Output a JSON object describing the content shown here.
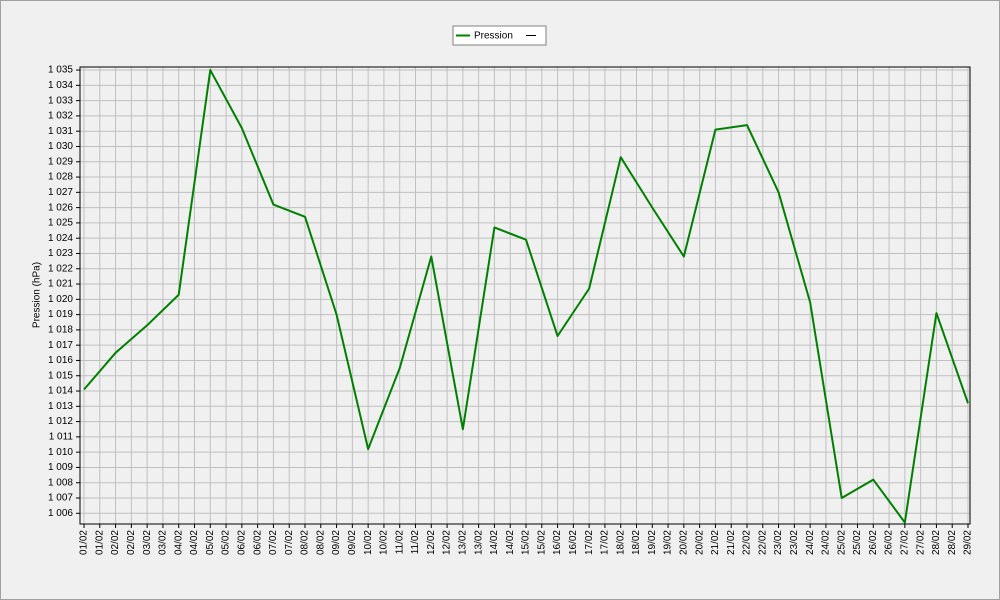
{
  "chart_data": {
    "type": "line",
    "y_label": "Pression (hPa)",
    "x": [
      "01/02",
      "02/02",
      "03/02",
      "04/02",
      "05/02",
      "06/02",
      "07/02",
      "08/02",
      "09/02",
      "10/02",
      "11/02",
      "12/02",
      "13/02",
      "14/02",
      "15/02",
      "16/02",
      "17/02",
      "18/02",
      "19/02",
      "20/02",
      "21/02",
      "22/02",
      "23/02",
      "24/02",
      "25/02",
      "26/02",
      "27/02",
      "28/02",
      "29/02"
    ],
    "xticks": [
      "01/02",
      "01/02",
      "02/02",
      "02/02",
      "03/02",
      "03/02",
      "04/02",
      "04/02",
      "05/02",
      "05/02",
      "06/02",
      "06/02",
      "07/02",
      "07/02",
      "08/02",
      "08/02",
      "09/02",
      "09/02",
      "10/02",
      "10/02",
      "11/02",
      "11/02",
      "12/02",
      "12/02",
      "13/02",
      "13/02",
      "14/02",
      "14/02",
      "15/02",
      "15/02",
      "16/02",
      "16/02",
      "17/02",
      "17/02",
      "18/02",
      "18/02",
      "19/02",
      "19/02",
      "20/02",
      "20/02",
      "21/02",
      "21/02",
      "22/02",
      "22/02",
      "23/02",
      "23/02",
      "24/02",
      "24/02",
      "25/02",
      "25/02",
      "26/02",
      "26/02",
      "27/02",
      "27/02",
      "28/02",
      "28/02",
      "29/02"
    ],
    "series": [
      {
        "name": "Pression",
        "color": "#008000",
        "values": [
          1014.1,
          1016.5,
          1018.3,
          1020.3,
          1035.0,
          1031.2,
          1026.2,
          1025.4,
          1019.0,
          1010.2,
          1015.5,
          1022.8,
          1011.5,
          1024.7,
          1023.9,
          1017.6,
          1020.7,
          1029.3,
          1026.0,
          1022.8,
          1031.1,
          1031.4,
          1027.0,
          1019.8,
          1007.0,
          1008.2,
          1005.4,
          1019.1,
          1013.2
        ]
      }
    ],
    "ylim": [
      1005.3,
      1035.2
    ],
    "yticks": [
      {
        "value": 1006,
        "label": "1 006"
      },
      {
        "value": 1007,
        "label": "1 007"
      },
      {
        "value": 1008,
        "label": "1 008"
      },
      {
        "value": 1009,
        "label": "1 009"
      },
      {
        "value": 1010,
        "label": "1 010"
      },
      {
        "value": 1011,
        "label": "1 011"
      },
      {
        "value": 1012,
        "label": "1 012"
      },
      {
        "value": 1013,
        "label": "1 013"
      },
      {
        "value": 1014,
        "label": "1 014"
      },
      {
        "value": 1015,
        "label": "1 015"
      },
      {
        "value": 1016,
        "label": "1 016"
      },
      {
        "value": 1017,
        "label": "1 017"
      },
      {
        "value": 1018,
        "label": "1 018"
      },
      {
        "value": 1019,
        "label": "1 019"
      },
      {
        "value": 1020,
        "label": "1 020"
      },
      {
        "value": 1021,
        "label": "1 021"
      },
      {
        "value": 1022,
        "label": "1 022"
      },
      {
        "value": 1023,
        "label": "1 023"
      },
      {
        "value": 1024,
        "label": "1 024"
      },
      {
        "value": 1025,
        "label": "1 025"
      },
      {
        "value": 1026,
        "label": "1 026"
      },
      {
        "value": 1027,
        "label": "1 027"
      },
      {
        "value": 1028,
        "label": "1 028"
      },
      {
        "value": 1029,
        "label": "1 029"
      },
      {
        "value": 1030,
        "label": "1 030"
      },
      {
        "value": 1031,
        "label": "1 031"
      },
      {
        "value": 1032,
        "label": "1 032"
      },
      {
        "value": 1033,
        "label": "1 033"
      },
      {
        "value": 1034,
        "label": "1 034"
      },
      {
        "value": 1035,
        "label": "1 035"
      }
    ],
    "grid": true,
    "legend": "top"
  }
}
